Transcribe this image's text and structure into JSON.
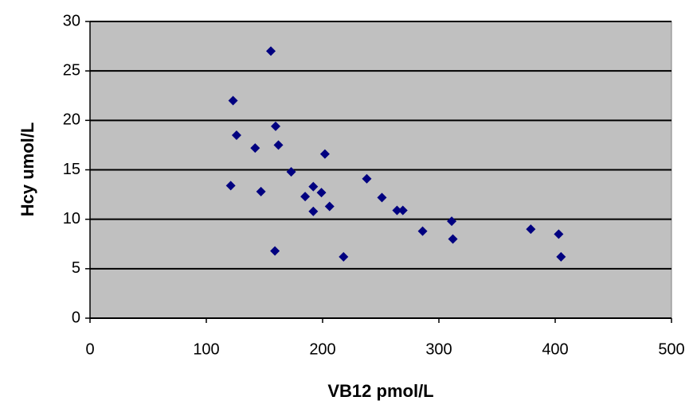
{
  "chart_data": {
    "type": "scatter",
    "x_label": "VB12 pmol/L",
    "y_label": "Hcy umol/L",
    "x": [
      155.5,
      123,
      126,
      159.6,
      142,
      162,
      202,
      173,
      121,
      147,
      192,
      199,
      185,
      238,
      251,
      206,
      192,
      264,
      269,
      311,
      286,
      312,
      379,
      403,
      405,
      218,
      159
    ],
    "values": [
      27.0,
      22.0,
      18.5,
      19.4,
      17.2,
      17.5,
      16.6,
      14.8,
      13.4,
      12.8,
      13.3,
      12.7,
      12.3,
      14.1,
      12.2,
      11.3,
      10.8,
      10.9,
      10.9,
      9.8,
      8.8,
      8.0,
      9.0,
      8.5,
      6.2,
      6.2,
      6.8
    ],
    "color": "#000080",
    "xlim": [
      0,
      500
    ],
    "xticks": [
      0,
      100,
      200,
      300,
      400,
      500
    ],
    "ylim": [
      0,
      30
    ],
    "yticks": [
      0,
      5,
      10,
      15,
      20,
      25,
      30
    ],
    "grid": true
  }
}
